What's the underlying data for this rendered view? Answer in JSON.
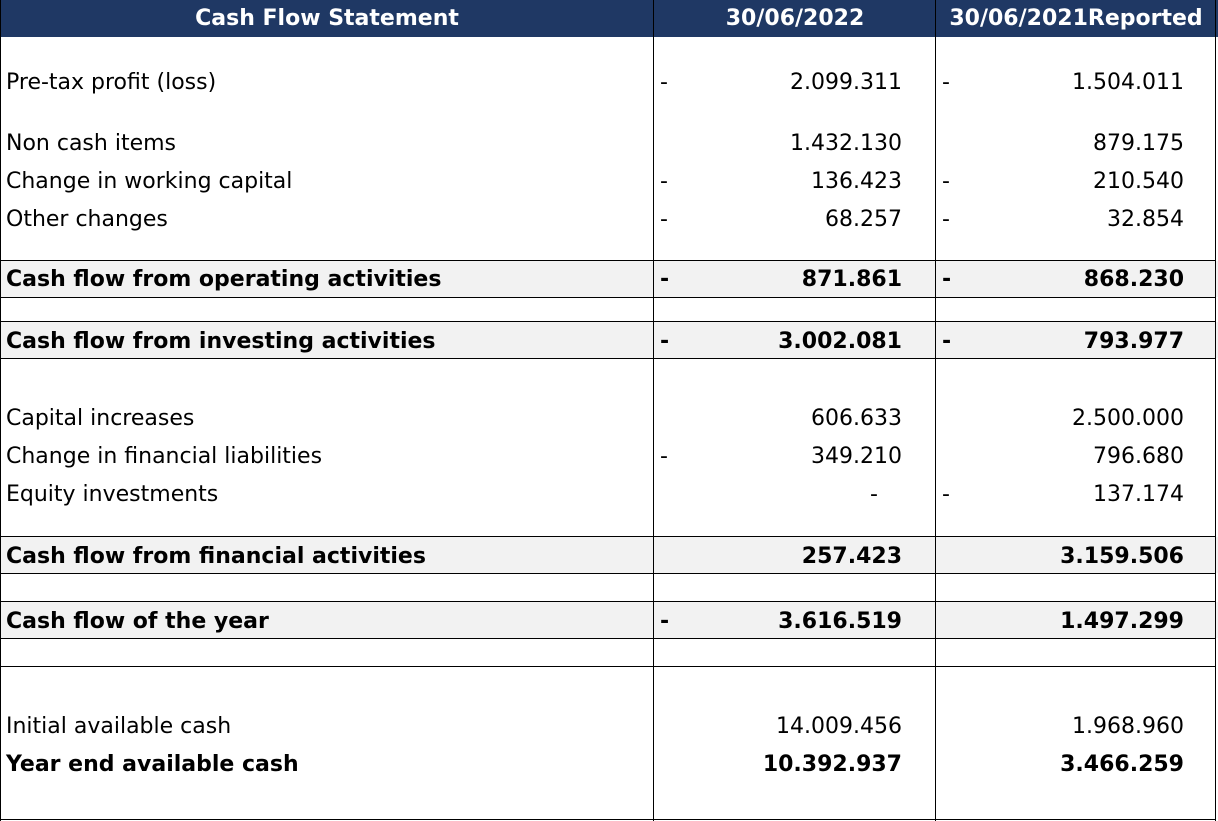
{
  "header": {
    "title": "Cash Flow Statement",
    "col1": "30/06/2022",
    "col2": "30/06/2021Reported"
  },
  "rows": [
    {
      "label": "Pre-tax profit (loss)",
      "sign1": "-",
      "v1": "2.099.311",
      "sign2": "-",
      "v2": "1.504.011"
    },
    {
      "label": "Non cash items",
      "sign1": "",
      "v1": "1.432.130",
      "sign2": "",
      "v2": "879.175"
    },
    {
      "label": "Change in working capital",
      "sign1": "-",
      "v1": "136.423",
      "sign2": "-",
      "v2": "210.540"
    },
    {
      "label": "Other changes",
      "sign1": "-",
      "v1": "68.257",
      "sign2": "-",
      "v2": "32.854"
    },
    {
      "label": "Cash flow from operating activities",
      "sign1": "-",
      "v1": "871.861",
      "sign2": "-",
      "v2": "868.230"
    },
    {
      "label": "Cash flow from investing activities",
      "sign1": "-",
      "v1": "3.002.081",
      "sign2": "-",
      "v2": "793.977"
    },
    {
      "label": "Capital increases",
      "sign1": "",
      "v1": "606.633",
      "sign2": "",
      "v2": "2.500.000"
    },
    {
      "label": "Change in financial liabilities",
      "sign1": "-",
      "v1": "349.210",
      "sign2": "",
      "v2": "796.680"
    },
    {
      "label": "Equity investments",
      "sign1": "",
      "v1": "-",
      "sign2": "-",
      "v2": "137.174"
    },
    {
      "label": "Cash flow from financial activities",
      "sign1": "",
      "v1": "257.423",
      "sign2": "",
      "v2": "3.159.506"
    },
    {
      "label": "Cash flow of the year",
      "sign1": "-",
      "v1": "3.616.519",
      "sign2": "",
      "v2": "1.497.299"
    },
    {
      "label": "Initial available cash",
      "sign1": "",
      "v1": "14.009.456",
      "sign2": "",
      "v2": "1.968.960"
    },
    {
      "label": "Year end available cash",
      "sign1": "",
      "v1": "10.392.937",
      "sign2": "",
      "v2": "3.466.259"
    }
  ]
}
